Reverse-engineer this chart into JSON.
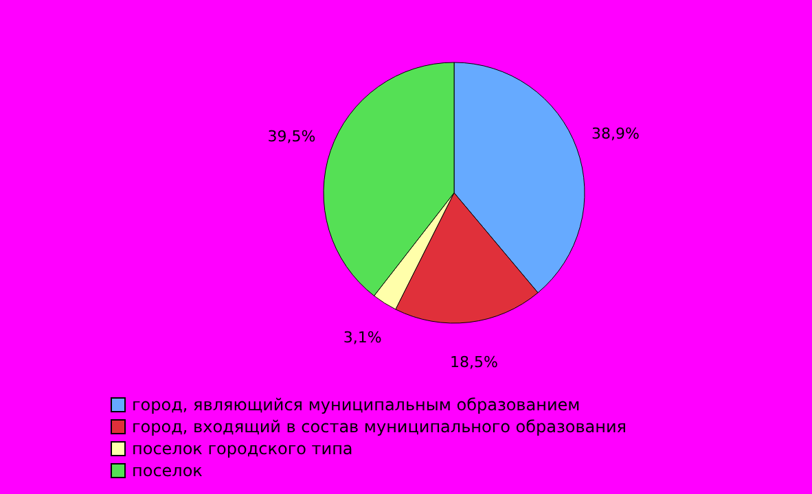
{
  "chart_data": {
    "type": "pie",
    "categories": [
      "город, являющийся муниципальным образованием",
      "город, входящий в состав муниципального образования",
      "поселок городского типа",
      "поселок"
    ],
    "values": [
      38.9,
      18.5,
      3.1,
      39.5
    ],
    "value_labels": [
      "38,9%",
      "18,5%",
      "3,1%",
      "39,5%"
    ],
    "colors": [
      "#66aaff",
      "#e0303a",
      "#ffffaa",
      "#55e055"
    ],
    "legend": "bottom"
  }
}
